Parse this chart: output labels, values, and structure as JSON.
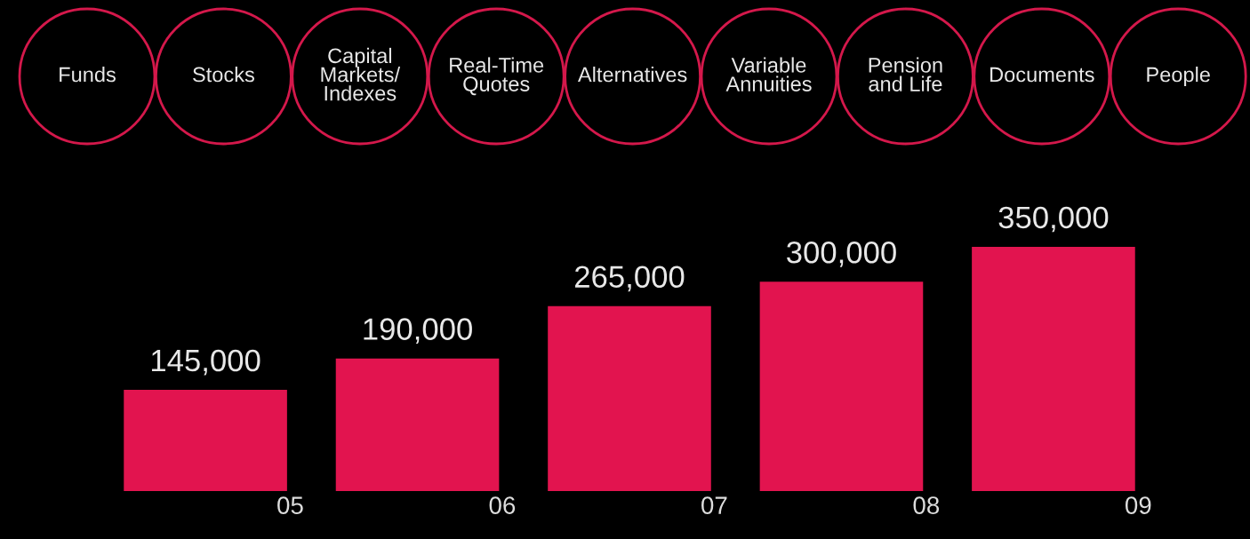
{
  "chart_data": {
    "type": "bar",
    "categories": [
      "05",
      "06",
      "07",
      "08",
      "09"
    ],
    "values": [
      145000,
      190000,
      265000,
      300000,
      350000
    ],
    "value_labels": [
      "145,000",
      "190,000",
      "265,000",
      "300,000",
      "350,000"
    ],
    "color": "#e2144f",
    "grid": false,
    "legend": false,
    "tick_labels": "x",
    "annotations": [
      "Funds",
      "Stocks",
      "Capital\nMarkets/\nIndexes",
      "Real-Time\nQuotes",
      "Alternatives",
      "Variable\nAnnuities",
      "Pension\nand Life",
      "Documents",
      "People"
    ]
  }
}
